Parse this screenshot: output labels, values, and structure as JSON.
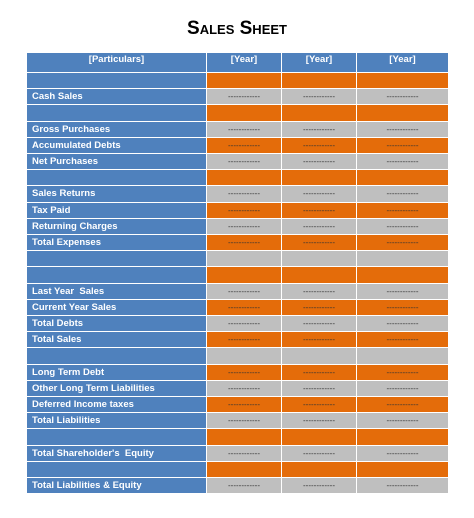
{
  "title": "Sales Sheet",
  "table": {
    "header": [
      "[Particulars]",
      "[Year]",
      "[Year]",
      "[Year]"
    ],
    "label_color": "#4f81bd",
    "rows": [
      {
        "color": "#e46c0a"
      },
      {
        "label": "Cash Sales",
        "color": "#bfbfbf",
        "cells": [
          "------------",
          "------------",
          "------------"
        ]
      },
      {
        "color": "#e46c0a"
      },
      {
        "label": "Gross Purchases",
        "color": "#bfbfbf",
        "cells": [
          "------------",
          "------------",
          "------------"
        ]
      },
      {
        "label": "Accumulated Debts",
        "color": "#e46c0a",
        "cells": [
          "------------",
          "------------",
          "------------"
        ]
      },
      {
        "label": "Net Purchases",
        "color": "#bfbfbf",
        "cells": [
          "------------",
          "------------",
          "------------"
        ]
      },
      {
        "color": "#e46c0a"
      },
      {
        "label": "Sales Returns",
        "color": "#bfbfbf",
        "cells": [
          "------------",
          "------------",
          "------------"
        ]
      },
      {
        "label": "Tax Paid",
        "color": "#e46c0a",
        "cells": [
          "------------",
          "------------",
          "------------"
        ]
      },
      {
        "label": "Returning Charges",
        "color": "#bfbfbf",
        "cells": [
          "------------",
          "------------",
          "------------"
        ]
      },
      {
        "label": "Total Expenses",
        "color": "#e46c0a",
        "cells": [
          "------------",
          "------------",
          "------------"
        ]
      },
      {
        "color": "#bfbfbf"
      },
      {
        "color": "#e46c0a"
      },
      {
        "label": "Last Year  Sales",
        "color": "#bfbfbf",
        "cells": [
          "------------",
          "------------",
          "------------"
        ]
      },
      {
        "label": "Current Year Sales",
        "color": "#e46c0a",
        "cells": [
          "------------",
          "------------",
          "------------"
        ]
      },
      {
        "label": "Total Debts",
        "color": "#bfbfbf",
        "cells": [
          "------------",
          "------------",
          "------------"
        ]
      },
      {
        "label": "Total Sales",
        "color": "#e46c0a",
        "cells": [
          "------------",
          "------------",
          "------------"
        ]
      },
      {
        "color": "#bfbfbf"
      },
      {
        "label": "Long Term Debt",
        "color": "#e46c0a",
        "cells": [
          "------------",
          "------------",
          "------------"
        ]
      },
      {
        "label": "Other Long Term Liabilities",
        "color": "#bfbfbf",
        "cells": [
          "------------",
          "------------",
          "------------"
        ]
      },
      {
        "label": "Deferred Income taxes",
        "color": "#e46c0a",
        "cells": [
          "------------",
          "------------",
          "------------"
        ]
      },
      {
        "label": "Total Liabilities",
        "color": "#bfbfbf",
        "cells": [
          "------------",
          "------------",
          "------------"
        ]
      },
      {
        "color": "#e46c0a"
      },
      {
        "label": "Total Shareholder's  Equity",
        "color": "#bfbfbf",
        "cells": [
          "------------",
          "------------",
          "------------"
        ]
      },
      {
        "color": "#e46c0a"
      },
      {
        "label": "Total Liabilities & Equity",
        "color": "#bfbfbf",
        "cells": [
          "------------",
          "------------",
          "------------"
        ]
      }
    ]
  }
}
